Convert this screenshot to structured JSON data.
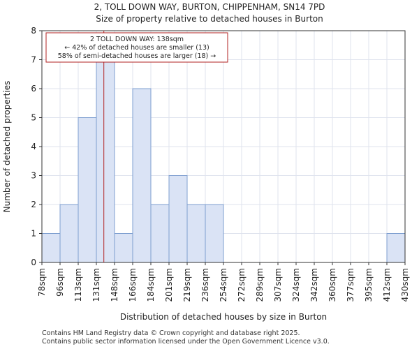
{
  "chart_data": {
    "type": "bar",
    "title_line1": "2, TOLL DOWN WAY, BURTON, CHIPPENHAM, SN14 7PD",
    "title_line2": "Size of property relative to detached houses in Burton",
    "xlabel": "Distribution of detached houses by size in Burton",
    "ylabel": "Number of detached properties",
    "bin_edges": [
      78,
      96,
      113,
      131,
      148,
      166,
      184,
      201,
      219,
      236,
      254,
      272,
      289,
      307,
      324,
      342,
      360,
      377,
      395,
      412,
      430
    ],
    "tick_labels": [
      "78sqm",
      "96sqm",
      "113sqm",
      "131sqm",
      "148sqm",
      "166sqm",
      "184sqm",
      "201sqm",
      "219sqm",
      "236sqm",
      "254sqm",
      "272sqm",
      "289sqm",
      "307sqm",
      "324sqm",
      "342sqm",
      "360sqm",
      "377sqm",
      "395sqm",
      "412sqm",
      "430sqm"
    ],
    "values": [
      1,
      2,
      5,
      7,
      1,
      6,
      2,
      3,
      2,
      2,
      0,
      0,
      0,
      0,
      0,
      0,
      0,
      0,
      0,
      1
    ],
    "ylim": [
      0,
      8
    ],
    "yticks": [
      0,
      1,
      2,
      3,
      4,
      5,
      6,
      7,
      8
    ],
    "marker_value": 138,
    "annotation": {
      "line1": "2 TOLL DOWN WAY: 138sqm",
      "line2": "← 42% of detached houses are smaller (13)",
      "line3": "58% of semi-detached houses are larger (18) →"
    },
    "colors": {
      "bar_fill": "#dae3f5",
      "bar_stroke": "#7f9fd0",
      "marker": "#b22222",
      "grid": "#dfe3ee"
    }
  },
  "footer": {
    "line1": "Contains HM Land Registry data © Crown copyright and database right 2025.",
    "line2": "Contains public sector information licensed under the Open Government Licence v3.0."
  }
}
